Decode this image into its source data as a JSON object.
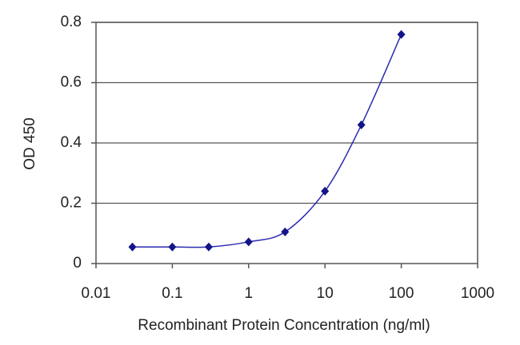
{
  "chart_data": {
    "type": "line",
    "x_label": "Recombinant Protein Concentration (ng/ml)",
    "y_label": "OD 450",
    "x": [
      0.03,
      0.1,
      0.3,
      1,
      3,
      10,
      30,
      100
    ],
    "values": [
      0.055,
      0.055,
      0.055,
      0.072,
      0.105,
      0.24,
      0.46,
      0.76
    ],
    "color": "#2b2bb0",
    "marker_color": "#14148a",
    "x_log": true,
    "xlim": [
      0.01,
      1000
    ],
    "xticks": [
      0.01,
      0.1,
      1,
      10,
      100,
      1000
    ],
    "ylim": [
      0,
      0.8
    ],
    "yticks": [
      0,
      0.2,
      0.4,
      0.6,
      0.8
    ],
    "grid": true
  }
}
